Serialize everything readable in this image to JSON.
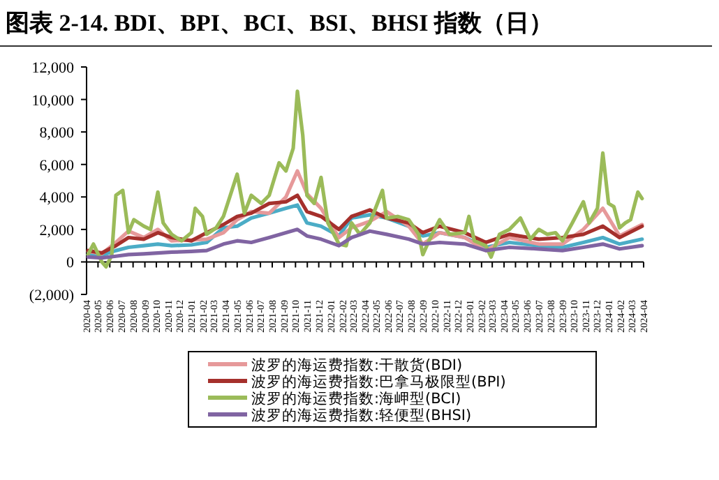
{
  "chart_data": {
    "type": "line",
    "title": "图表 2-14. BDI、BPI、BCI、BSI、BHSI 指数（日）",
    "xlim": [
      "2020-04",
      "2024-04"
    ],
    "xticks": [
      "2020-04",
      "2020-05",
      "2020-06",
      "2020-07",
      "2020-08",
      "2020-09",
      "2020-10",
      "2020-11",
      "2020-12",
      "2021-01",
      "2021-02",
      "2021-03",
      "2021-04",
      "2021-05",
      "2021-06",
      "2021-07",
      "2021-08",
      "2021-09",
      "2021-10",
      "2021-11",
      "2021-12",
      "2022-01",
      "2022-02",
      "2022-03",
      "2022-04",
      "2022-05",
      "2022-06",
      "2022-07",
      "2022-08",
      "2022-09",
      "2022-10",
      "2022-11",
      "2022-12",
      "2023-01",
      "2023-02",
      "2023-03",
      "2023-04",
      "2023-05",
      "2023-06",
      "2023-07",
      "2023-08",
      "2023-09",
      "2023-10",
      "2023-11",
      "2023-12",
      "2024-01",
      "2024-02",
      "2024-03",
      "2024-04"
    ],
    "ylim": [
      -2000,
      12000
    ],
    "yticks": [
      {
        "value": -2000,
        "label": "(2,000)"
      },
      {
        "value": 0,
        "label": "0"
      },
      {
        "value": 2000,
        "label": "2,000"
      },
      {
        "value": 4000,
        "label": "4,000"
      },
      {
        "value": 6000,
        "label": "6,000"
      },
      {
        "value": 8000,
        "label": "8,000"
      },
      {
        "value": 10000,
        "label": "10,000"
      },
      {
        "value": 12000,
        "label": "12,000"
      }
    ],
    "legend": "bottom",
    "series": [
      {
        "color": "#4bacc6",
        "x": [
          "2020-04-05",
          "2020-05-11",
          "2020-06-17",
          "2020-07-20",
          "2020-08-29",
          "2020-10-05",
          "2020-11-10",
          "2021-01-01",
          "2021-02-10",
          "2021-03-26",
          "2021-05-01",
          "2021-06-07",
          "2021-07-24",
          "2021-09-06",
          "2021-10-06",
          "2021-10-31",
          "2021-12-07",
          "2022-01-23",
          "2022-02-25",
          "2022-04-14",
          "2022-05-28",
          "2022-07-25",
          "2022-08-31",
          "2022-10-14",
          "2022-12-19",
          "2023-02-12",
          "2023-04-15",
          "2023-07-01",
          "2023-09-01",
          "2023-10-26",
          "2023-12-16",
          "2024-01-29",
          "2024-03-28"
        ],
        "values": [
          450,
          400,
          700,
          900,
          1000,
          1100,
          1000,
          1050,
          1200,
          2100,
          2200,
          2700,
          3000,
          3300,
          3500,
          2400,
          2200,
          1600,
          2700,
          2900,
          2700,
          2200,
          1600,
          1800,
          1500,
          900,
          1200,
          1000,
          900,
          1200,
          1500,
          1100,
          1400
        ]
      },
      {
        "name": "波罗的海运费指数:干散货(BDI)",
        "color": "#e6999a",
        "x": [
          "2020-04-05",
          "2020-05-11",
          "2020-06-17",
          "2020-07-20",
          "2020-08-29",
          "2020-10-05",
          "2020-11-10",
          "2021-01-01",
          "2021-02-10",
          "2021-03-26",
          "2021-05-01",
          "2021-06-07",
          "2021-07-24",
          "2021-09-06",
          "2021-10-06",
          "2021-10-31",
          "2021-12-07",
          "2022-01-23",
          "2022-02-25",
          "2022-04-14",
          "2022-05-28",
          "2022-07-25",
          "2022-08-31",
          "2022-10-14",
          "2022-12-19",
          "2023-02-12",
          "2023-04-15",
          "2023-07-01",
          "2023-09-01",
          "2023-10-26",
          "2023-12-16",
          "2024-01-29",
          "2024-03-28"
        ],
        "values": [
          650,
          500,
          1200,
          1900,
          1500,
          2000,
          1300,
          1350,
          1400,
          1800,
          2600,
          3100,
          3000,
          4000,
          5600,
          4200,
          3300,
          1500,
          2100,
          2500,
          3100,
          2200,
          1100,
          1800,
          1500,
          700,
          1500,
          1100,
          1100,
          2000,
          3300,
          1600,
          2300
        ]
      },
      {
        "name": "波罗的海运费指数:巴拿马极限型(BPI)",
        "color": "#a5302c",
        "x": [
          "2020-04-05",
          "2020-05-11",
          "2020-06-17",
          "2020-07-20",
          "2020-08-29",
          "2020-10-05",
          "2020-11-10",
          "2021-01-01",
          "2021-02-10",
          "2021-03-26",
          "2021-05-01",
          "2021-06-07",
          "2021-07-24",
          "2021-09-06",
          "2021-10-06",
          "2021-10-31",
          "2021-12-07",
          "2022-01-23",
          "2022-02-25",
          "2022-04-14",
          "2022-05-28",
          "2022-07-25",
          "2022-08-31",
          "2022-10-14",
          "2022-12-19",
          "2023-02-12",
          "2023-04-15",
          "2023-07-01",
          "2023-09-01",
          "2023-10-26",
          "2023-12-16",
          "2024-01-29",
          "2024-03-28"
        ],
        "values": [
          700,
          550,
          1000,
          1500,
          1400,
          1800,
          1500,
          1300,
          1800,
          2300,
          2800,
          3000,
          3600,
          3700,
          4100,
          3100,
          2800,
          2000,
          2800,
          3200,
          2700,
          2400,
          1800,
          2200,
          1800,
          1200,
          1700,
          1400,
          1500,
          1700,
          2200,
          1500,
          2200
        ]
      },
      {
        "name": "波罗的海运费指数:海岬型(BCI)",
        "color": "#9bbb59",
        "x": [
          "2020-04-05",
          "2020-04-19",
          "2020-05-11",
          "2020-05-22",
          "2020-06-06",
          "2020-06-17",
          "2020-07-05",
          "2020-07-20",
          "2020-08-03",
          "2020-08-29",
          "2020-09-16",
          "2020-10-05",
          "2020-10-19",
          "2020-11-10",
          "2020-12-06",
          "2021-01-01",
          "2021-01-11",
          "2021-01-30",
          "2021-02-10",
          "2021-03-07",
          "2021-03-26",
          "2021-05-01",
          "2021-05-20",
          "2021-06-07",
          "2021-07-03",
          "2021-07-24",
          "2021-08-19",
          "2021-09-06",
          "2021-09-25",
          "2021-10-06",
          "2021-10-20",
          "2021-10-31",
          "2021-11-19",
          "2021-12-07",
          "2021-12-25",
          "2022-01-23",
          "2022-02-11",
          "2022-02-25",
          "2022-03-19",
          "2022-04-14",
          "2022-05-17",
          "2022-05-28",
          "2022-06-26",
          "2022-07-25",
          "2022-08-20",
          "2022-08-31",
          "2022-09-18",
          "2022-10-14",
          "2022-11-09",
          "2022-12-19",
          "2022-12-30",
          "2023-01-13",
          "2023-02-12",
          "2023-02-26",
          "2023-03-20",
          "2023-04-15",
          "2023-05-14",
          "2023-06-09",
          "2023-07-01",
          "2023-07-23",
          "2023-08-14",
          "2023-09-01",
          "2023-09-27",
          "2023-10-26",
          "2023-11-10",
          "2023-12-02",
          "2023-12-16",
          "2023-12-31",
          "2024-01-14",
          "2024-01-29",
          "2024-02-13",
          "2024-02-27",
          "2024-03-17",
          "2024-03-28"
        ],
        "values": [
          450,
          1100,
          0,
          -300,
          400,
          4100,
          4400,
          1800,
          2600,
          2200,
          2000,
          4300,
          2400,
          1700,
          1300,
          1800,
          3300,
          2800,
          1700,
          2100,
          2800,
          5400,
          3000,
          4100,
          3600,
          4100,
          6100,
          5600,
          7000,
          10500,
          7800,
          4100,
          3600,
          5200,
          2400,
          1100,
          1000,
          2400,
          1700,
          2400,
          4400,
          2700,
          2800,
          2600,
          1700,
          450,
          1400,
          2600,
          1700,
          1800,
          2800,
          1300,
          1000,
          300,
          1700,
          2000,
          2700,
          1400,
          2000,
          1700,
          1800,
          1300,
          2400,
          3700,
          2400,
          3300,
          6700,
          3600,
          3400,
          2100,
          2400,
          2600,
          4300,
          3900
        ]
      },
      {
        "name": "波罗的海运费指数:轻便型(BHSI)",
        "color": "#8064a2",
        "x": [
          "2020-04-05",
          "2020-05-11",
          "2020-06-17",
          "2020-07-20",
          "2020-08-29",
          "2020-10-05",
          "2020-11-10",
          "2021-01-01",
          "2021-02-10",
          "2021-03-26",
          "2021-05-01",
          "2021-06-07",
          "2021-07-24",
          "2021-09-06",
          "2021-10-06",
          "2021-10-31",
          "2021-12-07",
          "2022-01-23",
          "2022-02-25",
          "2022-04-14",
          "2022-05-28",
          "2022-07-25",
          "2022-08-31",
          "2022-10-14",
          "2022-12-19",
          "2023-02-12",
          "2023-04-15",
          "2023-07-01",
          "2023-09-01",
          "2023-10-26",
          "2023-12-16",
          "2024-01-29",
          "2024-03-28"
        ],
        "values": [
          300,
          250,
          350,
          450,
          500,
          550,
          600,
          650,
          700,
          1100,
          1300,
          1200,
          1500,
          1800,
          2000,
          1600,
          1400,
          1000,
          1500,
          1900,
          1700,
          1400,
          1100,
          1200,
          1100,
          700,
          900,
          800,
          700,
          900,
          1100,
          800,
          1000
        ]
      }
    ]
  }
}
